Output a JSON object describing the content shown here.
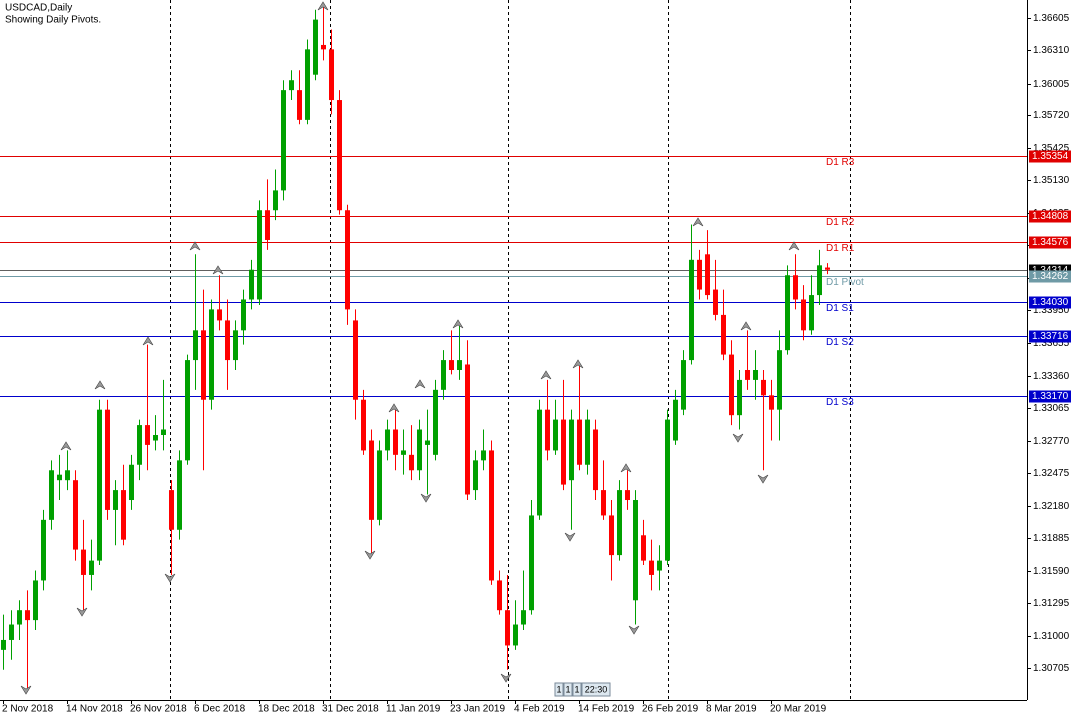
{
  "chart_data": {
    "type": "candlestick",
    "title": "USDCAD,Daily",
    "subtitle": "Showing Daily Pivots.",
    "categories": [
      "2 Nov 2018",
      null,
      null,
      null,
      null,
      null,
      null,
      null,
      "14 Nov 2018",
      null,
      null,
      null,
      null,
      null,
      null,
      null,
      "26 Nov 2018",
      null,
      null,
      null,
      null,
      null,
      null,
      null,
      "6 Dec 2018",
      null,
      null,
      null,
      null,
      null,
      null,
      null,
      "18 Dec 2018",
      null,
      null,
      null,
      null,
      null,
      null,
      null,
      "31 Dec 2018",
      null,
      null,
      null,
      null,
      null,
      null,
      null,
      "11 Jan 2019",
      null,
      null,
      null,
      null,
      null,
      null,
      null,
      "23 Jan 2019",
      null,
      null,
      null,
      null,
      null,
      null,
      null,
      "4 Feb 2019",
      null,
      null,
      null,
      null,
      null,
      null,
      null,
      "14 Feb 2019",
      null,
      null,
      null,
      null,
      null,
      null,
      null,
      "26 Feb 2019",
      null,
      null,
      null,
      null,
      null,
      null,
      null,
      "8 Mar 2019",
      null,
      null,
      null,
      null,
      null,
      null,
      null,
      "20 Mar 2019",
      null,
      null,
      null,
      null,
      null,
      null,
      null
    ],
    "open": [
      1.3087,
      1.3096,
      1.311,
      1.3123,
      1.3114,
      1.315,
      1.3205,
      1.3241,
      1.3241,
      1.3241,
      1.3178,
      1.3155,
      1.3168,
      1.3305,
      1.3214,
      1.3232,
      1.3223,
      1.3255,
      1.3291,
      1.3277,
      1.3282,
      1.3232,
      1.3196,
      1.3259,
      1.335,
      1.3377,
      1.3314,
      1.3396,
      1.3386,
      1.335,
      1.3377,
      1.3405,
      1.3405,
      1.3486,
      1.3486,
      1.3504,
      1.3595,
      1.3595,
      1.3568,
      1.3609,
      1.3636,
      1.3632,
      1.3586,
      1.3486,
      1.3386,
      1.3314,
      1.3277,
      1.3205,
      1.3268,
      1.3287,
      1.3264,
      1.3264,
      1.325,
      1.3273,
      1.3264,
      1.3323,
      1.335,
      1.3341,
      1.3346,
      1.3232,
      1.3259,
      1.3268,
      1.315,
      1.3123,
      1.3091,
      1.311,
      1.3123,
      1.3209,
      1.3305,
      1.3268,
      1.3296,
      1.3241,
      1.3296,
      1.3255,
      1.3287,
      1.3232,
      1.3209,
      1.3173,
      1.3232,
      1.3132,
      1.3191,
      1.3168,
      1.3159,
      1.3168,
      1.3277,
      1.3305,
      1.335,
      1.3441,
      1.3446,
      1.3414,
      1.3391,
      1.3355,
      1.33,
      1.3341,
      1.3332,
      1.3332,
      1.3318,
      1.3305,
      1.3359,
      1.3427,
      1.3405,
      1.3377,
      1.3409,
      1.3434
    ],
    "high": [
      1.3119,
      1.3123,
      1.3132,
      1.3141,
      1.3159,
      1.3214,
      1.3259,
      1.3264,
      1.3268,
      1.325,
      1.3205,
      1.3187,
      1.3314,
      1.3314,
      1.3241,
      1.3255,
      1.3264,
      1.3296,
      1.3364,
      1.33,
      1.3332,
      1.3241,
      1.3268,
      1.3355,
      1.3446,
      1.3414,
      1.3405,
      1.3427,
      1.3405,
      1.3386,
      1.3414,
      1.3441,
      1.3495,
      1.3514,
      1.3523,
      1.3604,
      1.3613,
      1.3613,
      1.3641,
      1.3668,
      1.3672,
      1.365,
      1.3595,
      1.3491,
      1.3396,
      1.3323,
      1.3287,
      1.3277,
      1.3296,
      1.3305,
      1.3287,
      1.3291,
      1.3296,
      1.3305,
      1.3332,
      1.3359,
      1.3377,
      1.3382,
      1.3368,
      1.3268,
      1.3287,
      1.3277,
      1.3159,
      1.3155,
      1.3132,
      1.3159,
      1.3223,
      1.3314,
      1.3332,
      1.3314,
      1.3332,
      1.3305,
      1.3346,
      1.3305,
      1.3296,
      1.3259,
      1.3223,
      1.3241,
      1.325,
      1.3232,
      1.3205,
      1.3187,
      1.3182,
      1.3305,
      1.3323,
      1.3359,
      1.3473,
      1.345,
      1.3468,
      1.3441,
      1.3414,
      1.3368,
      1.3341,
      1.3377,
      1.3359,
      1.3341,
      1.3332,
      1.3377,
      1.3436,
      1.3446,
      1.3418,
      1.3427,
      1.345,
      1.3438
    ],
    "low": [
      1.3069,
      1.3078,
      1.3096,
      1.305,
      1.3105,
      1.3141,
      1.3196,
      1.3223,
      1.3232,
      1.3168,
      1.3123,
      1.3141,
      1.3164,
      1.3205,
      1.3182,
      1.3182,
      1.3214,
      1.3241,
      1.325,
      1.3268,
      1.3268,
      1.3155,
      1.3187,
      1.3255,
      1.3323,
      1.325,
      1.3305,
      1.3377,
      1.3323,
      1.3341,
      1.3364,
      1.3396,
      1.34,
      1.345,
      1.3477,
      1.3495,
      1.3586,
      1.3564,
      1.3564,
      1.3604,
      1.3622,
      1.3573,
      1.3482,
      1.3382,
      1.3296,
      1.3264,
      1.3173,
      1.32,
      1.3259,
      1.325,
      1.3246,
      1.3241,
      1.3241,
      1.3228,
      1.3259,
      1.3314,
      1.3337,
      1.3332,
      1.3223,
      1.3223,
      1.325,
      1.3146,
      1.3119,
      1.3069,
      1.3087,
      1.3105,
      1.3119,
      1.3205,
      1.3259,
      1.3264,
      1.3232,
      1.3196,
      1.325,
      1.3246,
      1.3223,
      1.3205,
      1.315,
      1.3168,
      1.3214,
      1.311,
      1.3164,
      1.3141,
      1.3141,
      1.3164,
      1.3273,
      1.33,
      1.3346,
      1.3405,
      1.3405,
      1.3386,
      1.335,
      1.3291,
      1.3287,
      1.3323,
      1.3314,
      1.325,
      1.3277,
      1.3277,
      1.3355,
      1.3396,
      1.3368,
      1.3373,
      1.34,
      1.3428
    ],
    "close": [
      1.3096,
      1.311,
      1.3123,
      1.3114,
      1.315,
      1.3205,
      1.325,
      1.3246,
      1.325,
      1.3178,
      1.3155,
      1.3168,
      1.3305,
      1.3214,
      1.3232,
      1.3187,
      1.3255,
      1.3291,
      1.3273,
      1.3282,
      1.3287,
      1.3196,
      1.3259,
      1.335,
      1.3377,
      1.3314,
      1.3396,
      1.3386,
      1.335,
      1.3377,
      1.3405,
      1.3432,
      1.3486,
      1.3459,
      1.3504,
      1.3595,
      1.3604,
      1.3568,
      1.3632,
      1.3659,
      1.3632,
      1.3586,
      1.3486,
      1.3396,
      1.3314,
      1.3268,
      1.3205,
      1.3268,
      1.3287,
      1.3264,
      1.3268,
      1.325,
      1.3287,
      1.3277,
      1.3323,
      1.335,
      1.3341,
      1.335,
      1.3228,
      1.3259,
      1.3268,
      1.315,
      1.3123,
      1.3091,
      1.311,
      1.3123,
      1.3209,
      1.3305,
      1.3268,
      1.3296,
      1.3237,
      1.3296,
      1.3255,
      1.3296,
      1.3232,
      1.3209,
      1.3173,
      1.3232,
      1.3223,
      1.3223,
      1.3168,
      1.3155,
      1.3168,
      1.3296,
      1.3314,
      1.335,
      1.3441,
      1.3414,
      1.3409,
      1.3391,
      1.3355,
      1.33,
      1.3332,
      1.3332,
      1.3341,
      1.3318,
      1.3305,
      1.3359,
      1.3427,
      1.3405,
      1.3377,
      1.3409,
      1.3436,
      1.3432
    ],
    "up_color": "#00a000",
    "down_color": "#ff0000",
    "ylim": [
      1.30415,
      1.36768
    ],
    "yticks": [
      1.36605,
      {
        "value": 1.3631,
        "label": "1.36310"
      },
      1.36005,
      {
        "value": 1.3572,
        "label": "1.35720"
      },
      1.35425,
      {
        "value": 1.3513,
        "label": "1.35130"
      },
      1.34835,
      {
        "value": 1.3454,
        "label": "1.34540"
      },
      1.34245,
      {
        "value": 1.3395,
        "label": "1.33950"
      },
      1.33655,
      {
        "value": 1.3336,
        "label": "1.33360"
      },
      1.33065,
      {
        "value": 1.3277,
        "label": "1.32770"
      },
      1.32475,
      {
        "value": 1.3218,
        "label": "1.32180"
      },
      1.31885,
      {
        "value": 1.3159,
        "label": "1.31590"
      },
      1.31295,
      {
        "value": 1.31,
        "label": "1.31000"
      },
      1.30705
    ],
    "current_price": 1.34314,
    "levels": {
      "names": [
        "D1 R3",
        "D1 R2",
        "D1 R1",
        "D1 Pivot",
        "D1 S1",
        "D1 S2",
        "D1 S3"
      ],
      "values": [
        1.35354,
        1.34808,
        1.34576,
        1.34262,
        1.3403,
        1.33716,
        1.3317
      ],
      "value_labels": [
        "1.35354",
        "1.34808",
        "1.34576",
        "1.34262",
        "1.34030",
        "1.33716",
        "1.33170"
      ],
      "colors": [
        "#e00000",
        "#e00000",
        "#e00000",
        "#6f9aa6",
        "#0000cc",
        "#0000cc",
        "#0000cc"
      ]
    },
    "status_boxes": [
      "1",
      "1",
      "1",
      "22:30"
    ]
  }
}
